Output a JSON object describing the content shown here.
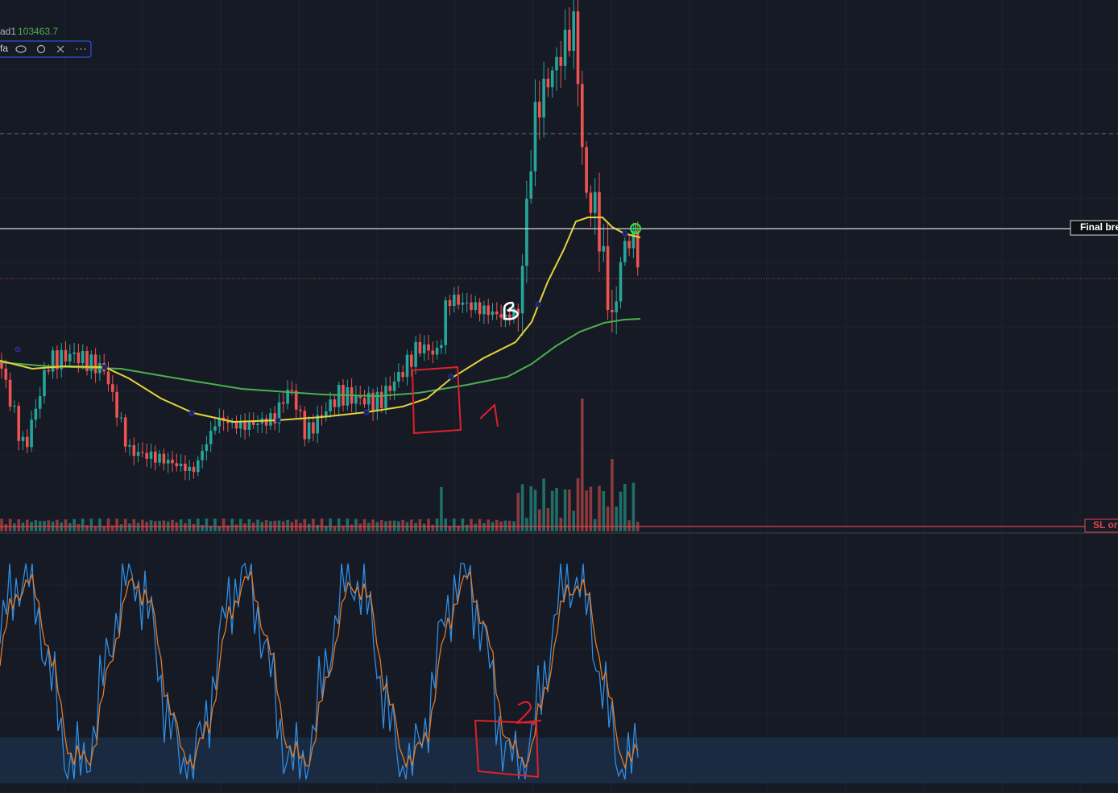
{
  "legend": {
    "indicator": "ad1",
    "value": "103463.7",
    "name": "fa"
  },
  "price_lines": [
    {
      "label": "Final break"
    },
    {
      "label": "SL ord"
    }
  ]
}
